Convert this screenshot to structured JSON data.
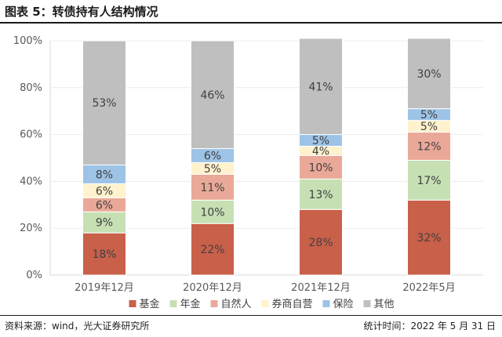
{
  "header": {
    "title": "图表 5：转债持有人结构情况"
  },
  "footer": {
    "source": "资料来源：wind，光大证券研究所",
    "date": "统计时间：2022 年 5 月 31 日"
  },
  "chart_data": {
    "type": "bar",
    "stacked": true,
    "title": "",
    "xlabel": "",
    "ylabel": "",
    "ylim": [
      0,
      100
    ],
    "yticks": [
      "0%",
      "20%",
      "40%",
      "60%",
      "80%",
      "100%"
    ],
    "grid": true,
    "legend": "bottom",
    "categories": [
      "2019年12月",
      "2020年12月",
      "2021年12月",
      "2022年5月"
    ],
    "series": [
      {
        "name": "基金",
        "color": "#c9604a",
        "values": [
          18,
          22,
          28,
          32
        ]
      },
      {
        "name": "年金",
        "color": "#c6e0b4",
        "values": [
          9,
          10,
          13,
          17
        ]
      },
      {
        "name": "自然人",
        "color": "#eaa898",
        "values": [
          6,
          11,
          10,
          12
        ]
      },
      {
        "name": "券商自营",
        "color": "#fff2cc",
        "values": [
          6,
          5,
          4,
          5
        ]
      },
      {
        "name": "保险",
        "color": "#9dc3e6",
        "values": [
          8,
          6,
          5,
          5
        ]
      },
      {
        "name": "其他",
        "color": "#bfbfbf",
        "values": [
          53,
          46,
          41,
          30
        ]
      }
    ]
  }
}
